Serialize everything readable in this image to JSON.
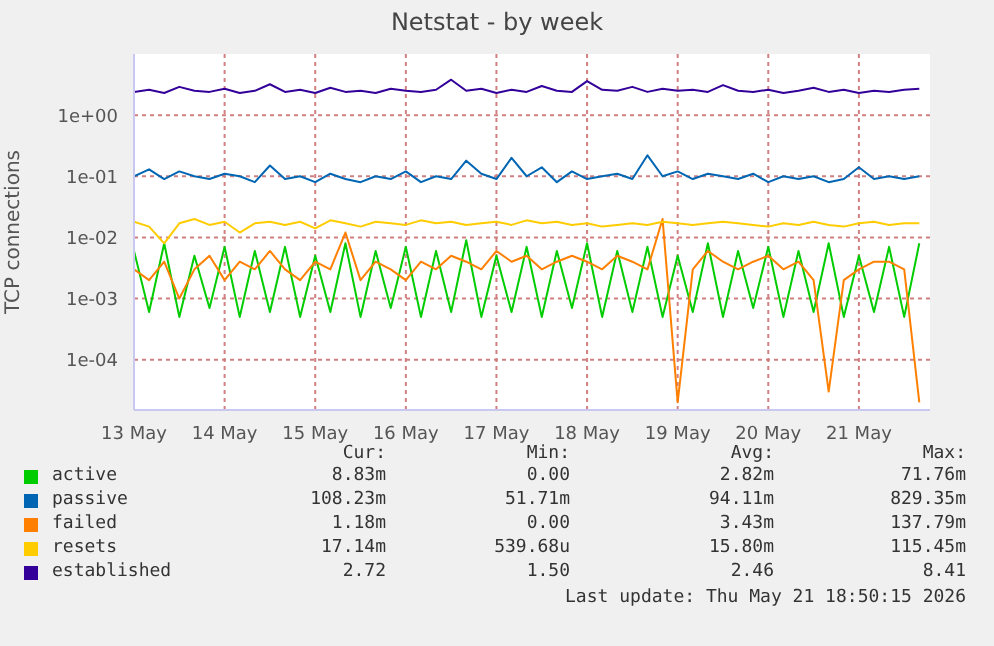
{
  "chart_data": {
    "type": "line",
    "title": "Netstat - by week",
    "ylabel": "TCP connections",
    "log": "y",
    "grid": true,
    "legend": "bottom",
    "marker": "none",
    "line_style": "solid",
    "x": [
      "2026-05-13T00:00",
      "2026-05-13T04:00",
      "2026-05-13T08:00",
      "2026-05-13T12:00",
      "2026-05-13T16:00",
      "2026-05-13T20:00",
      "2026-05-14T00:00",
      "2026-05-14T04:00",
      "2026-05-14T08:00",
      "2026-05-14T12:00",
      "2026-05-14T16:00",
      "2026-05-14T20:00",
      "2026-05-15T00:00",
      "2026-05-15T04:00",
      "2026-05-15T08:00",
      "2026-05-15T12:00",
      "2026-05-15T16:00",
      "2026-05-15T20:00",
      "2026-05-16T00:00",
      "2026-05-16T04:00",
      "2026-05-16T08:00",
      "2026-05-16T12:00",
      "2026-05-16T16:00",
      "2026-05-16T20:00",
      "2026-05-17T00:00",
      "2026-05-17T04:00",
      "2026-05-17T08:00",
      "2026-05-17T12:00",
      "2026-05-17T16:00",
      "2026-05-17T20:00",
      "2026-05-18T00:00",
      "2026-05-18T04:00",
      "2026-05-18T08:00",
      "2026-05-18T12:00",
      "2026-05-18T16:00",
      "2026-05-18T20:00",
      "2026-05-19T00:00",
      "2026-05-19T04:00",
      "2026-05-19T08:00",
      "2026-05-19T12:00",
      "2026-05-19T16:00",
      "2026-05-19T20:00",
      "2026-05-20T00:00",
      "2026-05-20T04:00",
      "2026-05-20T08:00",
      "2026-05-20T12:00",
      "2026-05-20T16:00",
      "2026-05-20T20:00",
      "2026-05-21T00:00",
      "2026-05-21T04:00",
      "2026-05-21T08:00",
      "2026-05-21T12:00",
      "2026-05-21T16:00"
    ],
    "xlim": [
      "2026-05-13T00:00",
      "2026-05-21T18:50"
    ],
    "xticks": [
      {
        "value": "2026-05-13",
        "label": "13 May"
      },
      {
        "value": "2026-05-14",
        "label": "14 May"
      },
      {
        "value": "2026-05-15",
        "label": "15 May"
      },
      {
        "value": "2026-05-16",
        "label": "16 May"
      },
      {
        "value": "2026-05-17",
        "label": "17 May"
      },
      {
        "value": "2026-05-18",
        "label": "18 May"
      },
      {
        "value": "2026-05-19",
        "label": "19 May"
      },
      {
        "value": "2026-05-20",
        "label": "20 May"
      },
      {
        "value": "2026-05-21",
        "label": "21 May"
      }
    ],
    "ylim": [
      1.5e-05,
      10
    ],
    "yticks": [
      {
        "value": 0.0001,
        "label": "1e-04"
      },
      {
        "value": 0.001,
        "label": "1e-03"
      },
      {
        "value": 0.01,
        "label": "1e-02"
      },
      {
        "value": 0.1,
        "label": "1e-01"
      },
      {
        "value": 1,
        "label": "1e+00"
      }
    ],
    "series": [
      {
        "name": "active",
        "color": "#00cc00",
        "values": [
          0.006,
          0.0006,
          0.008,
          0.0005,
          0.005,
          0.0007,
          0.007,
          0.0005,
          0.006,
          0.0006,
          0.007,
          0.0005,
          0.005,
          0.0006,
          0.008,
          0.0005,
          0.006,
          0.0007,
          0.007,
          0.0005,
          0.006,
          0.0006,
          0.009,
          0.0005,
          0.005,
          0.0006,
          0.007,
          0.0005,
          0.006,
          0.0007,
          0.008,
          0.0005,
          0.006,
          0.0006,
          0.007,
          0.0005,
          0.005,
          0.0006,
          0.008,
          0.0005,
          0.006,
          0.0007,
          0.007,
          0.0005,
          0.006,
          0.0006,
          0.008,
          0.0005,
          0.005,
          0.0006,
          0.007,
          0.0005,
          0.008
        ]
      },
      {
        "name": "passive",
        "color": "#0066b3",
        "values": [
          0.1,
          0.13,
          0.09,
          0.12,
          0.1,
          0.09,
          0.11,
          0.1,
          0.08,
          0.15,
          0.09,
          0.1,
          0.08,
          0.11,
          0.09,
          0.08,
          0.1,
          0.09,
          0.12,
          0.08,
          0.1,
          0.09,
          0.18,
          0.11,
          0.09,
          0.2,
          0.1,
          0.14,
          0.08,
          0.12,
          0.09,
          0.1,
          0.11,
          0.09,
          0.22,
          0.1,
          0.12,
          0.09,
          0.11,
          0.1,
          0.09,
          0.11,
          0.08,
          0.1,
          0.09,
          0.1,
          0.08,
          0.09,
          0.14,
          0.09,
          0.1,
          0.09,
          0.1
        ]
      },
      {
        "name": "failed",
        "color": "#ff8000",
        "values": [
          0.003,
          0.002,
          0.004,
          0.001,
          0.003,
          0.005,
          0.002,
          0.004,
          0.003,
          0.006,
          0.003,
          0.002,
          0.004,
          0.003,
          0.012,
          0.002,
          0.004,
          0.003,
          0.002,
          0.004,
          0.003,
          0.005,
          0.004,
          0.003,
          0.006,
          0.004,
          0.005,
          0.003,
          0.004,
          0.005,
          0.004,
          0.003,
          0.005,
          0.004,
          0.003,
          0.02,
          2e-05,
          0.003,
          0.006,
          0.004,
          0.003,
          0.004,
          0.005,
          0.003,
          0.004,
          0.002,
          3e-05,
          0.002,
          0.003,
          0.004,
          0.004,
          0.003,
          2e-05
        ]
      },
      {
        "name": "resets",
        "color": "#ffcc00",
        "values": [
          0.018,
          0.015,
          0.008,
          0.017,
          0.02,
          0.016,
          0.018,
          0.012,
          0.017,
          0.018,
          0.016,
          0.018,
          0.014,
          0.019,
          0.017,
          0.015,
          0.018,
          0.017,
          0.016,
          0.019,
          0.017,
          0.018,
          0.016,
          0.017,
          0.018,
          0.016,
          0.019,
          0.017,
          0.018,
          0.016,
          0.017,
          0.015,
          0.016,
          0.017,
          0.016,
          0.018,
          0.017,
          0.016,
          0.017,
          0.018,
          0.017,
          0.016,
          0.015,
          0.017,
          0.016,
          0.018,
          0.016,
          0.015,
          0.017,
          0.018,
          0.016,
          0.017,
          0.017
        ]
      },
      {
        "name": "established",
        "color": "#330099",
        "values": [
          2.4,
          2.6,
          2.3,
          2.9,
          2.5,
          2.4,
          2.7,
          2.3,
          2.5,
          3.2,
          2.4,
          2.6,
          2.3,
          2.8,
          2.4,
          2.5,
          2.3,
          2.7,
          2.5,
          2.4,
          2.6,
          3.8,
          2.5,
          2.7,
          2.3,
          2.6,
          2.4,
          3.0,
          2.5,
          2.4,
          3.6,
          2.6,
          2.5,
          2.9,
          2.4,
          2.7,
          2.5,
          2.6,
          2.4,
          3.1,
          2.5,
          2.4,
          2.6,
          2.3,
          2.5,
          2.8,
          2.4,
          2.6,
          2.3,
          2.5,
          2.4,
          2.6,
          2.7
        ]
      }
    ],
    "annotations": [
      "Cur:",
      "Min:",
      "Avg:",
      "Max:",
      "8.83m",
      "0.00",
      "2.82m",
      "71.76m",
      "108.23m",
      "51.71m",
      "94.11m",
      "829.35m",
      "1.18m",
      "0.00",
      "3.43m",
      "137.79m",
      "17.14m",
      "539.68u",
      "15.80m",
      "115.45m",
      "2.72",
      "1.50",
      "2.46",
      "8.41",
      "Last update: Thu May 21 18:50:15 2026"
    ]
  }
}
